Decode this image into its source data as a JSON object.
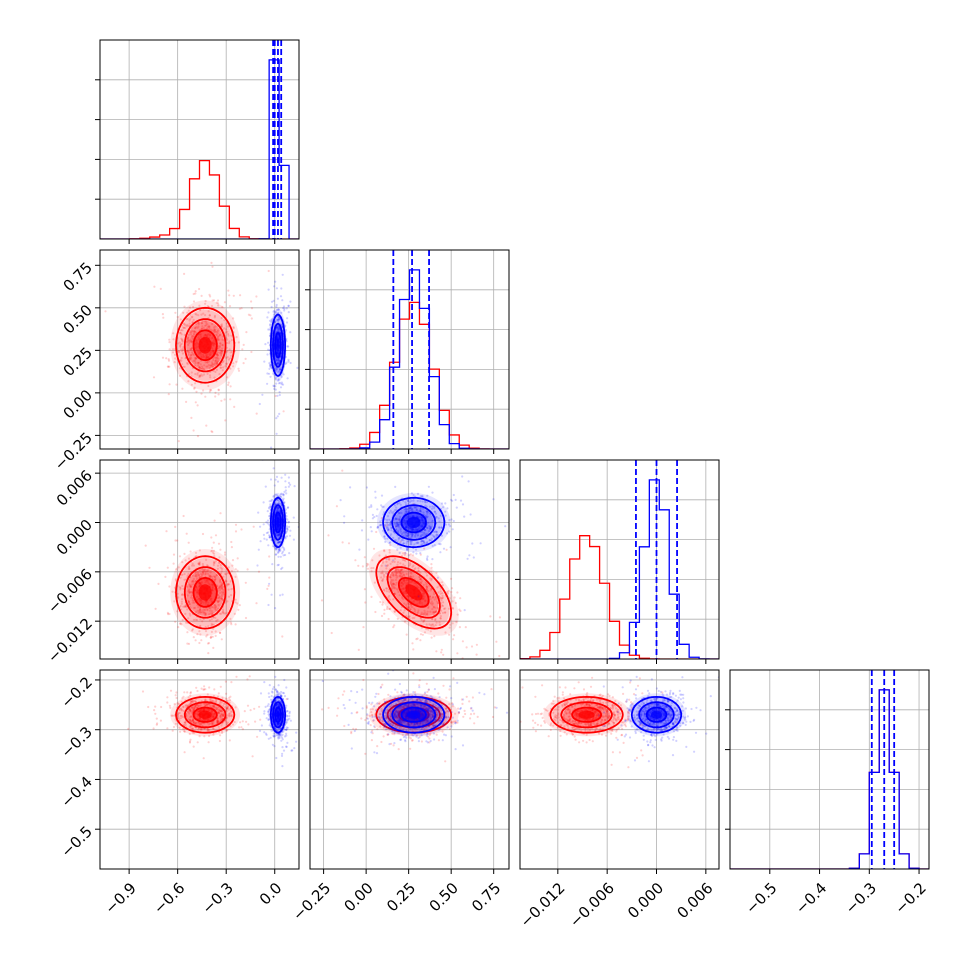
{
  "chart_data": {
    "type": "corner",
    "title": "",
    "grid": true,
    "colors": {
      "red": "#ff0000",
      "blue": "#0000ff",
      "grid": "#b0b0b0"
    },
    "parameters": [
      {
        "index": 0,
        "range": [
          -1.08,
          0.15
        ],
        "ticks": [
          -0.9,
          -0.6,
          -0.3,
          0.0
        ],
        "tick_labels": [
          "−0.9",
          "−0.6",
          "−0.3",
          "0.0"
        ]
      },
      {
        "index": 1,
        "range": [
          -0.33,
          0.84
        ],
        "ticks": [
          -0.25,
          0.0,
          0.25,
          0.5,
          0.75
        ],
        "tick_labels": [
          "−0.25",
          "0.00",
          "0.25",
          "0.50",
          "0.75"
        ]
      },
      {
        "index": 2,
        "range": [
          -0.0166,
          0.0076
        ],
        "ticks": [
          -0.012,
          -0.006,
          0.0,
          0.006
        ],
        "tick_labels": [
          "−0.012",
          "−0.006",
          "0.000",
          "0.006"
        ]
      },
      {
        "index": 3,
        "range": [
          -0.58,
          -0.18
        ],
        "ticks": [
          -0.5,
          -0.4,
          -0.3,
          -0.2
        ],
        "tick_labels": [
          "−0.5",
          "−0.4",
          "−0.3",
          "−0.2"
        ]
      }
    ],
    "series": [
      {
        "color": "red",
        "mean": [
          -0.43,
          0.28,
          -0.0085,
          -0.27
        ],
        "std": [
          0.09,
          0.11,
          0.0022,
          0.018
        ],
        "pairs": [
          {
            "i": 1,
            "j": 0,
            "rho": 0.0
          },
          {
            "i": 2,
            "j": 0,
            "rho": 0.0
          },
          {
            "i": 2,
            "j": 1,
            "rho": -0.55
          },
          {
            "i": 3,
            "j": 0,
            "rho": 0.0
          },
          {
            "i": 3,
            "j": 1,
            "rho": 0.0
          },
          {
            "i": 3,
            "j": 2,
            "rho": 0.0
          }
        ]
      },
      {
        "color": "blue",
        "mean": [
          0.02,
          0.28,
          0.0,
          -0.27
        ],
        "std": [
          0.022,
          0.09,
          0.0015,
          0.018
        ],
        "quantiles": [
          [
            -0.01,
            0.0,
            0.02,
            0.04
          ],
          [
            0.16,
            0.27,
            0.37
          ],
          [
            -0.0025,
            0.0,
            0.0025
          ],
          [
            -0.295,
            -0.27,
            -0.25
          ]
        ],
        "pairs": [
          {
            "i": 1,
            "j": 0,
            "rho": 0.0
          },
          {
            "i": 2,
            "j": 0,
            "rho": 0.0
          },
          {
            "i": 2,
            "j": 1,
            "rho": 0.0
          },
          {
            "i": 3,
            "j": 0,
            "rho": 0.0
          },
          {
            "i": 3,
            "j": 1,
            "rho": 0.0
          },
          {
            "i": 3,
            "j": 2,
            "rho": 0.0
          }
        ]
      }
    ]
  }
}
